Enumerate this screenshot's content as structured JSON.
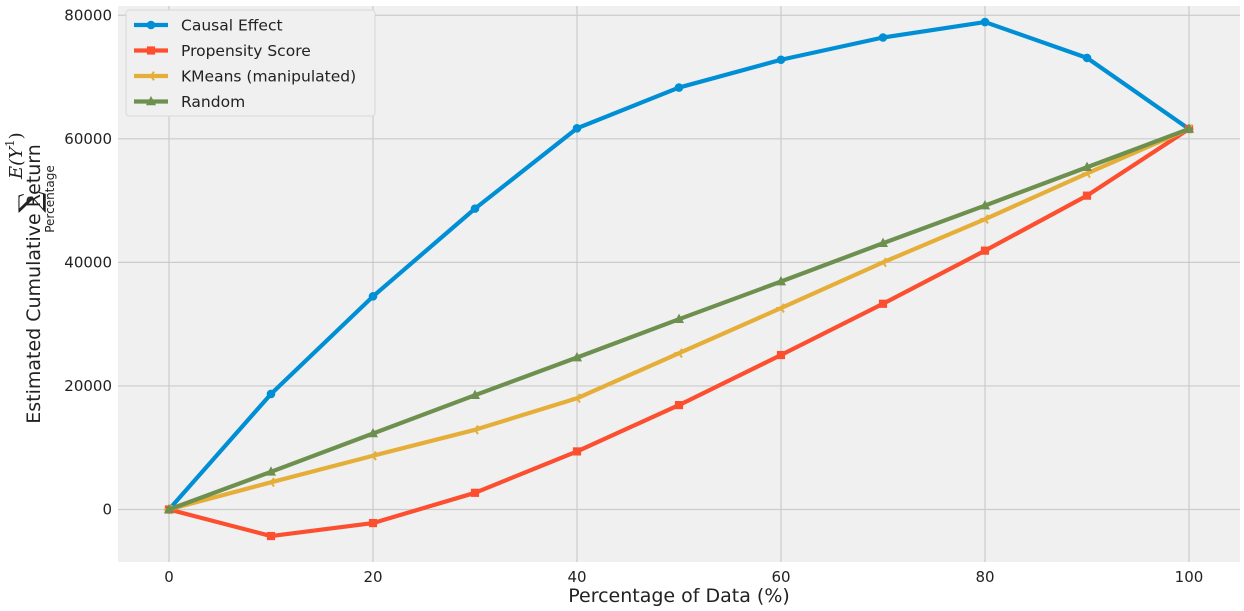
{
  "chart_data": {
    "type": "line",
    "xlabel": "Percentage of Data (%)",
    "ylabel": {
      "main": "Estimated Cumulative Return",
      "sum_symbol": "∑",
      "sum_subscript": "Percentage",
      "expectation": "E(Y",
      "superscript": "1",
      "close": ")"
    },
    "x": [
      0,
      10,
      20,
      30,
      40,
      50,
      60,
      70,
      80,
      90,
      100
    ],
    "xlim": [
      -5,
      105
    ],
    "ylim": [
      -8500,
      81500
    ],
    "xticks": [
      0,
      20,
      40,
      60,
      80,
      100
    ],
    "yticks": [
      0,
      20000,
      40000,
      60000,
      80000
    ],
    "grid": true,
    "legend_position": "top-left",
    "series": [
      {
        "name": "Causal Effect",
        "color": "#008fd5",
        "marker": "circle",
        "values": [
          0,
          18700,
          34500,
          48700,
          61700,
          68300,
          72800,
          76400,
          78900,
          73100,
          61600
        ]
      },
      {
        "name": "Propensity Score",
        "color": "#fc4f30",
        "marker": "square",
        "values": [
          0,
          -4300,
          -2200,
          2700,
          9400,
          16900,
          25000,
          33300,
          41900,
          50800,
          61600
        ]
      },
      {
        "name": "KMeans (manipulated)",
        "color": "#e5ae38",
        "marker": "tri_left",
        "values": [
          0,
          4400,
          8700,
          12900,
          18000,
          25300,
          32600,
          40000,
          47000,
          54400,
          61600
        ]
      },
      {
        "name": "Random",
        "color": "#6d904f",
        "marker": "triangle_up",
        "values": [
          0,
          6100,
          12300,
          18500,
          24600,
          30800,
          36900,
          43100,
          49200,
          55400,
          61600
        ]
      }
    ]
  }
}
